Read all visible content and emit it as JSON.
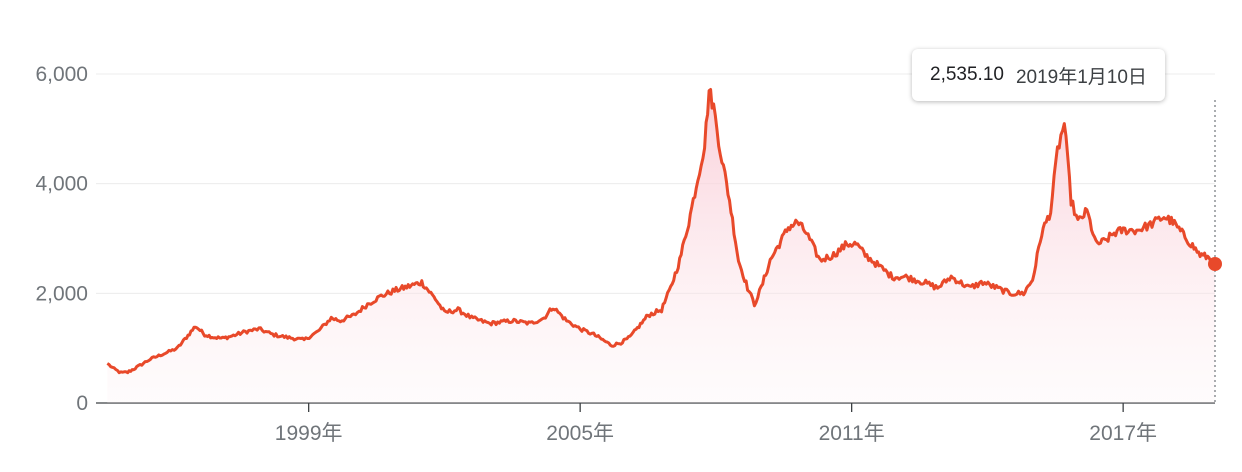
{
  "tooltip": {
    "value": "2,535.10",
    "date": "2019年1月10日"
  },
  "colors": {
    "line": "#e8492a",
    "fill": "#fde4ea",
    "grid": "#ececec",
    "axis": "#3c4043",
    "text": "#70757a"
  },
  "chart_data": {
    "type": "area",
    "title": "",
    "xlabel": "",
    "ylabel": "",
    "ylim": [
      0,
      6000
    ],
    "xlim": [
      1994.3,
      2019.03
    ],
    "grid": true,
    "legend": "none",
    "y_ticks": [
      {
        "value": 6000,
        "label": "6,000"
      },
      {
        "value": 4000,
        "label": "4,000"
      },
      {
        "value": 2000,
        "label": "2,000"
      },
      {
        "value": 0,
        "label": "0"
      }
    ],
    "x_ticks": [
      {
        "value": 1999,
        "label": "1999年"
      },
      {
        "value": 2005,
        "label": "2005年"
      },
      {
        "value": 2011,
        "label": "2011年"
      },
      {
        "value": 2017,
        "label": "2017年"
      }
    ],
    "series": [
      {
        "x": [
          1994.55,
          1994.7,
          1994.85,
          1995.0,
          1995.2,
          1995.5,
          1995.8,
          1996.1,
          1996.3,
          1996.5,
          1996.7,
          1996.9,
          1997.1,
          1997.3,
          1997.6,
          1997.9,
          1998.2,
          1998.5,
          1998.9,
          1999.2,
          1999.5,
          1999.7,
          2000.0,
          2000.3,
          2000.6,
          2000.9,
          2001.1,
          2001.3,
          2001.5,
          2001.6,
          2001.8,
          2002.0,
          2002.3,
          2002.6,
          2003.0,
          2003.5,
          2003.9,
          2004.2,
          2004.4,
          2004.7,
          2005.0,
          2005.3,
          2005.5,
          2005.7,
          2005.9,
          2006.1,
          2006.3,
          2006.5,
          2006.8,
          2007.0,
          2007.2,
          2007.4,
          2007.6,
          2007.75,
          2007.85,
          2007.95,
          2008.1,
          2008.3,
          2008.5,
          2008.7,
          2008.85,
          2009.0,
          2009.2,
          2009.4,
          2009.6,
          2009.8,
          2010.0,
          2010.3,
          2010.6,
          2010.9,
          2011.1,
          2011.3,
          2011.6,
          2011.9,
          2012.2,
          2012.6,
          2012.9,
          2013.2,
          2013.6,
          2013.9,
          2014.2,
          2014.5,
          2014.8,
          2015.0,
          2015.2,
          2015.4,
          2015.55,
          2015.7,
          2015.85,
          2016.0,
          2016.2,
          2016.4,
          2016.6,
          2016.8,
          2017.0,
          2017.3,
          2017.6,
          2017.9,
          2018.1,
          2018.3,
          2018.5,
          2018.7,
          2018.9,
          2019.03
        ],
        "values": [
          720,
          620,
          550,
          560,
          650,
          800,
          900,
          1000,
          1200,
          1400,
          1250,
          1200,
          1180,
          1220,
          1300,
          1350,
          1250,
          1200,
          1150,
          1300,
          1550,
          1500,
          1600,
          1800,
          1950,
          2050,
          2100,
          2150,
          2200,
          2100,
          1900,
          1650,
          1700,
          1550,
          1450,
          1500,
          1450,
          1550,
          1750,
          1500,
          1350,
          1250,
          1150,
          1050,
          1100,
          1200,
          1400,
          1600,
          1700,
          2100,
          2600,
          3300,
          4100,
          4700,
          5700,
          5400,
          4600,
          3700,
          2600,
          2100,
          1800,
          2100,
          2600,
          2900,
          3200,
          3300,
          3100,
          2600,
          2700,
          2900,
          2900,
          2700,
          2500,
          2300,
          2300,
          2200,
          2100,
          2300,
          2100,
          2200,
          2100,
          2000,
          2000,
          2250,
          3100,
          3500,
          4600,
          5100,
          3700,
          3300,
          3500,
          2900,
          2950,
          3100,
          3150,
          3150,
          3250,
          3400,
          3300,
          3100,
          2900,
          2700,
          2650,
          2535.1
        ]
      }
    ]
  }
}
